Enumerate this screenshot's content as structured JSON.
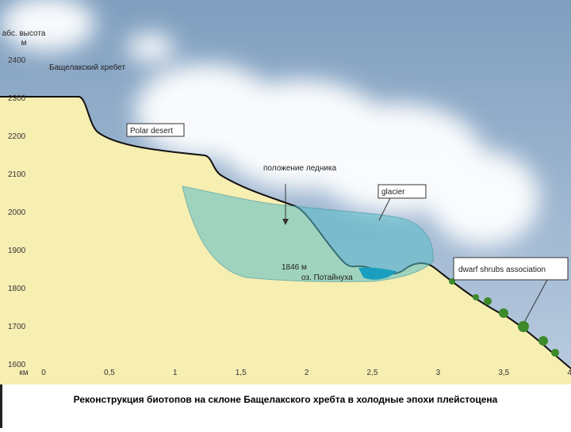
{
  "axis": {
    "y_title": "абс. высота",
    "y_unit": "м",
    "y_ticks": [
      "2400",
      "2300",
      "2200",
      "2100",
      "2000",
      "1900",
      "1800",
      "1700",
      "1600"
    ],
    "x_unit": "км",
    "x_ticks": [
      "0",
      "0,5",
      "1",
      "1,5",
      "2",
      "2,5",
      "3",
      "3,5",
      "4"
    ]
  },
  "labels": {
    "ridge": "Бащелакский хребет",
    "polar_desert": "Polar desert",
    "glacier_position": "положение ледника",
    "glacier": "glacier",
    "lake_altitude": "1846 м",
    "lake_name": "оз. Потайнуха",
    "shrubs": "dwarf shrubs association"
  },
  "caption": "Реконструкция биотопов на склоне Бащелакского хребта в холодные эпохи плейстоцена"
}
